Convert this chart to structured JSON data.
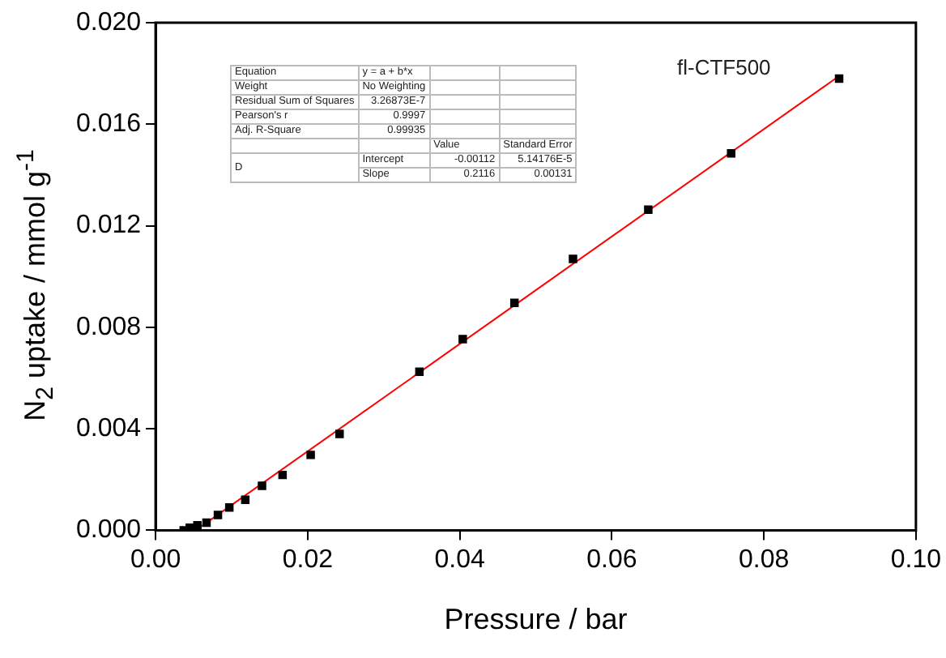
{
  "chart_data": {
    "type": "scatter",
    "xlabel": "Pressure / bar",
    "ylabel": "N$_{2}$ uptake / mmol g$^{-1}$",
    "xlim": [
      0,
      0.1
    ],
    "xticks": [
      {
        "value": 0,
        "label": "0.00"
      },
      0.02,
      0.04,
      0.06,
      0.08,
      {
        "value": 0.1,
        "label": "0.10"
      }
    ],
    "ylim": [
      0,
      0.02
    ],
    "yticks": [
      {
        "value": 0,
        "label": "0.000"
      },
      0.004,
      0.008,
      0.012,
      0.016,
      {
        "value": 0.02,
        "label": "0.020"
      }
    ],
    "grid": false,
    "legend": false,
    "series": [
      {
        "type": "scatter",
        "color": "#000000",
        "marker": "square",
        "x": [
          0.0037,
          0.0045,
          0.0055,
          0.0067,
          0.0082,
          0.0097,
          0.0118,
          0.014,
          0.0167,
          0.0204,
          0.0242,
          0.0347,
          0.0404,
          0.0472,
          0.0549,
          0.0648,
          0.0757,
          0.0899
        ],
        "values": [
          0,
          0.0001,
          0.0002,
          0.0003,
          0.0006,
          0.0009,
          0.0012,
          0.00175,
          0.00218,
          0.00297,
          0.0038,
          0.00625,
          0.00753,
          0.00896,
          0.01069,
          0.01263,
          0.01485,
          0.0178
        ]
      },
      {
        "type": "line",
        "color": "#ff0000",
        "marker": "none",
        "line_style": "solid",
        "x": [
          0.0053,
          0.0899
        ],
        "values": [
          0,
          0.0179
        ]
      }
    ],
    "annotations": [
      "fl-CTF500",
      "Equation",
      "y = a + b*x",
      "Weight",
      "No Weighting",
      "Residual Sum of Squares",
      "3.26873E-7",
      "Pearson's r",
      "0.9997",
      "Adj. R-Square",
      "0.99935",
      "Value",
      "Standard Error",
      "D",
      "Intercept",
      "-0.00112",
      "5.14176E-5",
      "Slope",
      "0.2116",
      "0.00131"
    ]
  }
}
